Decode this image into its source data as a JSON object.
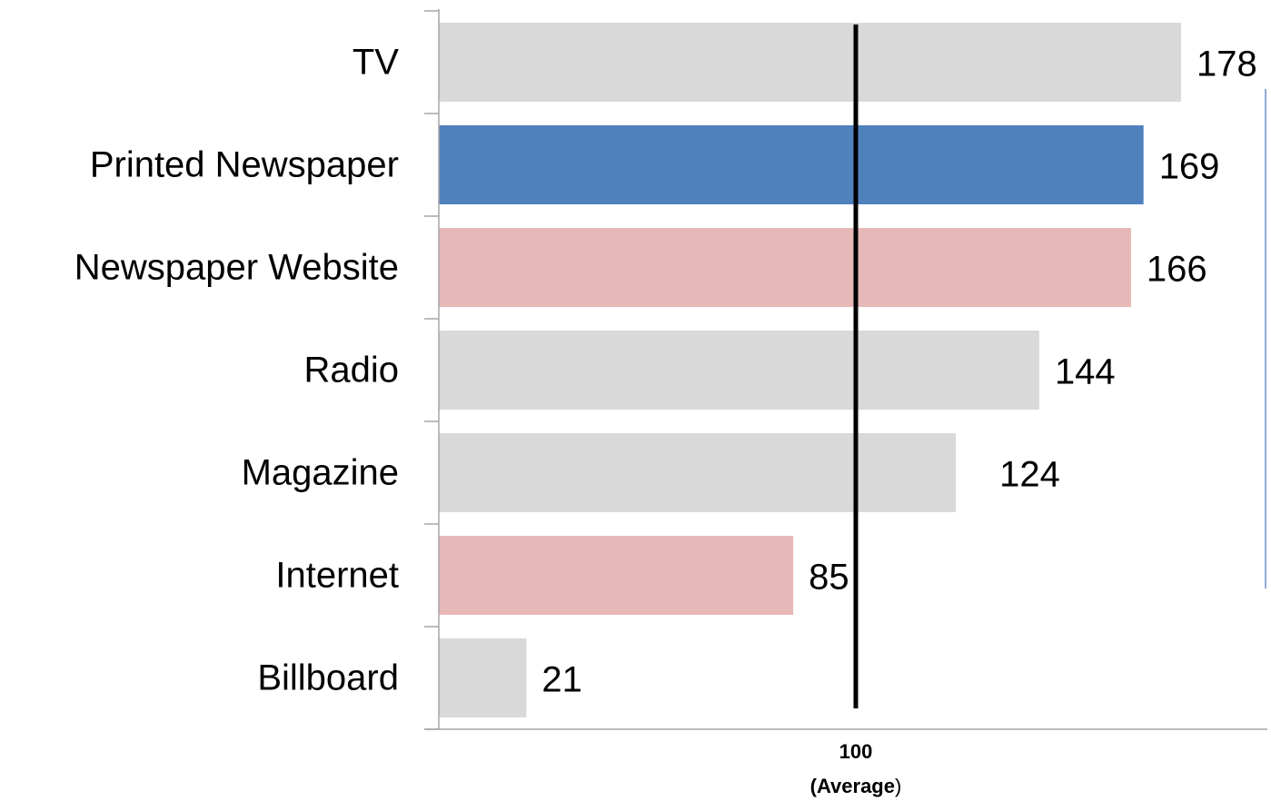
{
  "chart_data": {
    "type": "bar",
    "orientation": "horizontal",
    "categories": [
      "TV",
      "Printed Newspaper",
      "Newspaper Website",
      "Radio",
      "Magazine",
      "Internet",
      "Billboard"
    ],
    "values": [
      178,
      169,
      166,
      144,
      124,
      85,
      21
    ],
    "data_labels": [
      "178",
      "169",
      "166",
      "144",
      "124",
      "85",
      "21"
    ],
    "bar_colors": [
      "#d9d9d9",
      "#4f81bd",
      "#e6b8b7",
      "#d9d9d9",
      "#d9d9d9",
      "#e6b8b7",
      "#d9d9d9"
    ],
    "xlim": [
      0,
      180
    ],
    "reference_line": {
      "value": 100,
      "label_value": "100",
      "label_text": "(Average",
      "label_paren": ")",
      "color": "#000000"
    },
    "title": "",
    "xlabel": "",
    "ylabel": "",
    "grid": false,
    "legend": "none"
  },
  "colors": {
    "axis": "#a6a6a6",
    "divider": "#8eaadb"
  }
}
